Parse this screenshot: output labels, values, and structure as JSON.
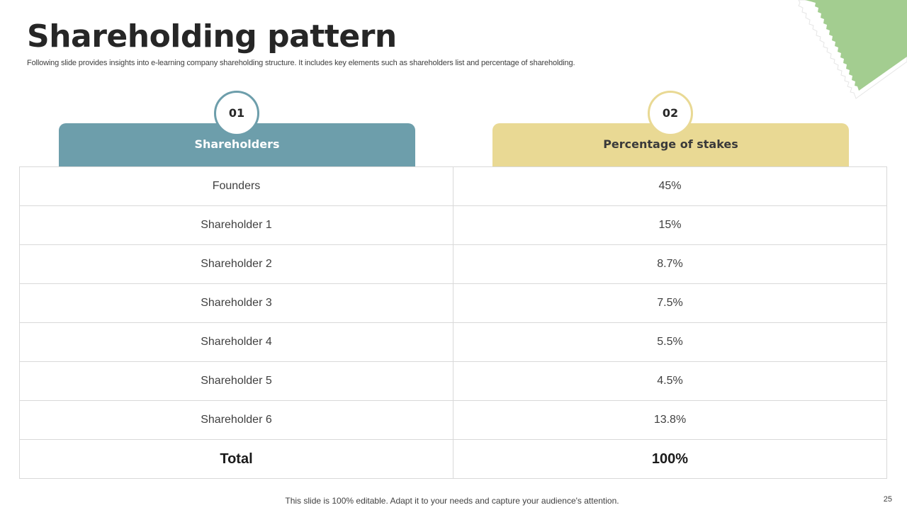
{
  "slide": {
    "title": "Shareholding pattern",
    "subtitle": "Following slide provides insights into e-learning company shareholding structure. It includes  key elements such as shareholders list and percentage of shareholding.",
    "footer": "This slide is 100% editable. Adapt it to your needs and capture your audience's attention.",
    "page_number": "25"
  },
  "colors": {
    "header_left": "#6d9eab",
    "header_right": "#e9d994",
    "corner_accent": "#a3cd90"
  },
  "columns": [
    {
      "number": "01",
      "label": "Shareholders"
    },
    {
      "number": "02",
      "label": "Percentage of stakes"
    }
  ],
  "rows": [
    {
      "holder": "Founders",
      "stake": "45%"
    },
    {
      "holder": "Shareholder 1",
      "stake": "15%"
    },
    {
      "holder": "Shareholder 2",
      "stake": "8.7%"
    },
    {
      "holder": "Shareholder 3",
      "stake": "7.5%"
    },
    {
      "holder": "Shareholder 4",
      "stake": "5.5%"
    },
    {
      "holder": "Shareholder 5",
      "stake": "4.5%"
    },
    {
      "holder": "Shareholder 6",
      "stake": "13.8%"
    }
  ],
  "total": {
    "label": "Total",
    "value": "100%"
  }
}
